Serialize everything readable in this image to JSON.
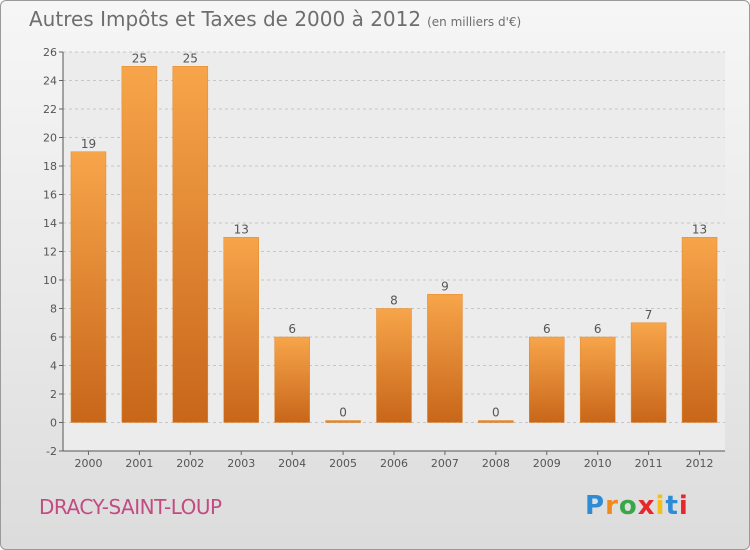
{
  "page": {
    "title": "Autres Impôts et Taxes de 2000 à 2012",
    "unit_note": "(en milliers d'€)",
    "location": "DRACY-SAINT-LOUP",
    "logo": {
      "letters": [
        "P",
        "r",
        "o",
        "x",
        "i",
        "t",
        "i"
      ],
      "colors": [
        "#2e8bd6",
        "#f08a1c",
        "#3aa64a",
        "#e8262b",
        "#f2c019",
        "#2e8bd6",
        "#e8262b"
      ]
    }
  },
  "chart_data": {
    "type": "bar",
    "title": "Autres Impôts et Taxes de 2000 à 2012",
    "subtitle": "(en milliers d'€)",
    "categories": [
      "2000",
      "2001",
      "2002",
      "2003",
      "2004",
      "2005",
      "2006",
      "2007",
      "2008",
      "2009",
      "2010",
      "2011",
      "2012"
    ],
    "values": [
      19,
      25,
      25,
      13,
      6,
      0,
      8,
      9,
      0,
      6,
      6,
      7,
      13
    ],
    "value_labels": [
      "19",
      "25",
      "25",
      "13",
      "6",
      "0",
      "8",
      "9",
      "0",
      "6",
      "6",
      "7",
      "13"
    ],
    "ylim": [
      -2,
      26
    ],
    "yticks": [
      -2,
      0,
      2,
      4,
      6,
      8,
      10,
      12,
      14,
      16,
      18,
      20,
      22,
      24,
      26
    ],
    "ytick_labels": [
      "-2",
      "0",
      "2",
      "4",
      "6",
      "8",
      "10",
      "12",
      "14",
      "16",
      "18",
      "20",
      "22",
      "24",
      "26"
    ],
    "grid": true,
    "bar_color": "#f0952e",
    "xlabel": "",
    "ylabel": ""
  }
}
